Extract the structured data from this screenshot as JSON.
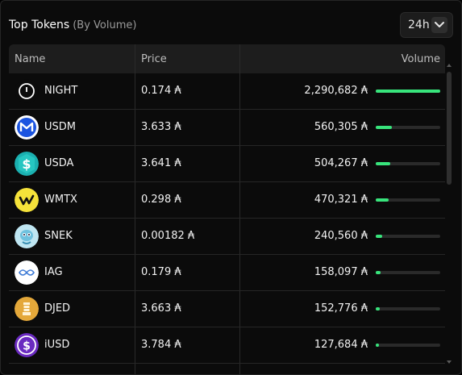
{
  "header": {
    "title": "Top Tokens",
    "subtitle": "(By Volume)"
  },
  "period": {
    "value": "24h",
    "icon": "chevron-down-icon"
  },
  "columns": {
    "name": "Name",
    "price": "Price",
    "volume": "Volume"
  },
  "accent_color": "#38e47c",
  "rows": [
    {
      "name": "NIGHT",
      "price": "0.174 ₳",
      "volume": "2,290,682 ₳",
      "volume_value": 2290682,
      "icon": "night-token-icon"
    },
    {
      "name": "USDM",
      "price": "3.633 ₳",
      "volume": "560,305 ₳",
      "volume_value": 560305,
      "icon": "usdm-token-icon"
    },
    {
      "name": "USDA",
      "price": "3.641 ₳",
      "volume": "504,267 ₳",
      "volume_value": 504267,
      "icon": "usda-token-icon"
    },
    {
      "name": "WMTX",
      "price": "0.298 ₳",
      "volume": "470,321 ₳",
      "volume_value": 470321,
      "icon": "wmtx-token-icon"
    },
    {
      "name": "SNEK",
      "price": "0.00182 ₳",
      "volume": "240,560 ₳",
      "volume_value": 240560,
      "icon": "snek-token-icon"
    },
    {
      "name": "IAG",
      "price": "0.179 ₳",
      "volume": "158,097 ₳",
      "volume_value": 158097,
      "icon": "iag-token-icon"
    },
    {
      "name": "DJED",
      "price": "3.663 ₳",
      "volume": "152,776 ₳",
      "volume_value": 152776,
      "icon": "djed-token-icon"
    },
    {
      "name": "iUSD",
      "price": "3.784 ₳",
      "volume": "127,684 ₳",
      "volume_value": 127684,
      "icon": "iusd-token-icon"
    }
  ]
}
